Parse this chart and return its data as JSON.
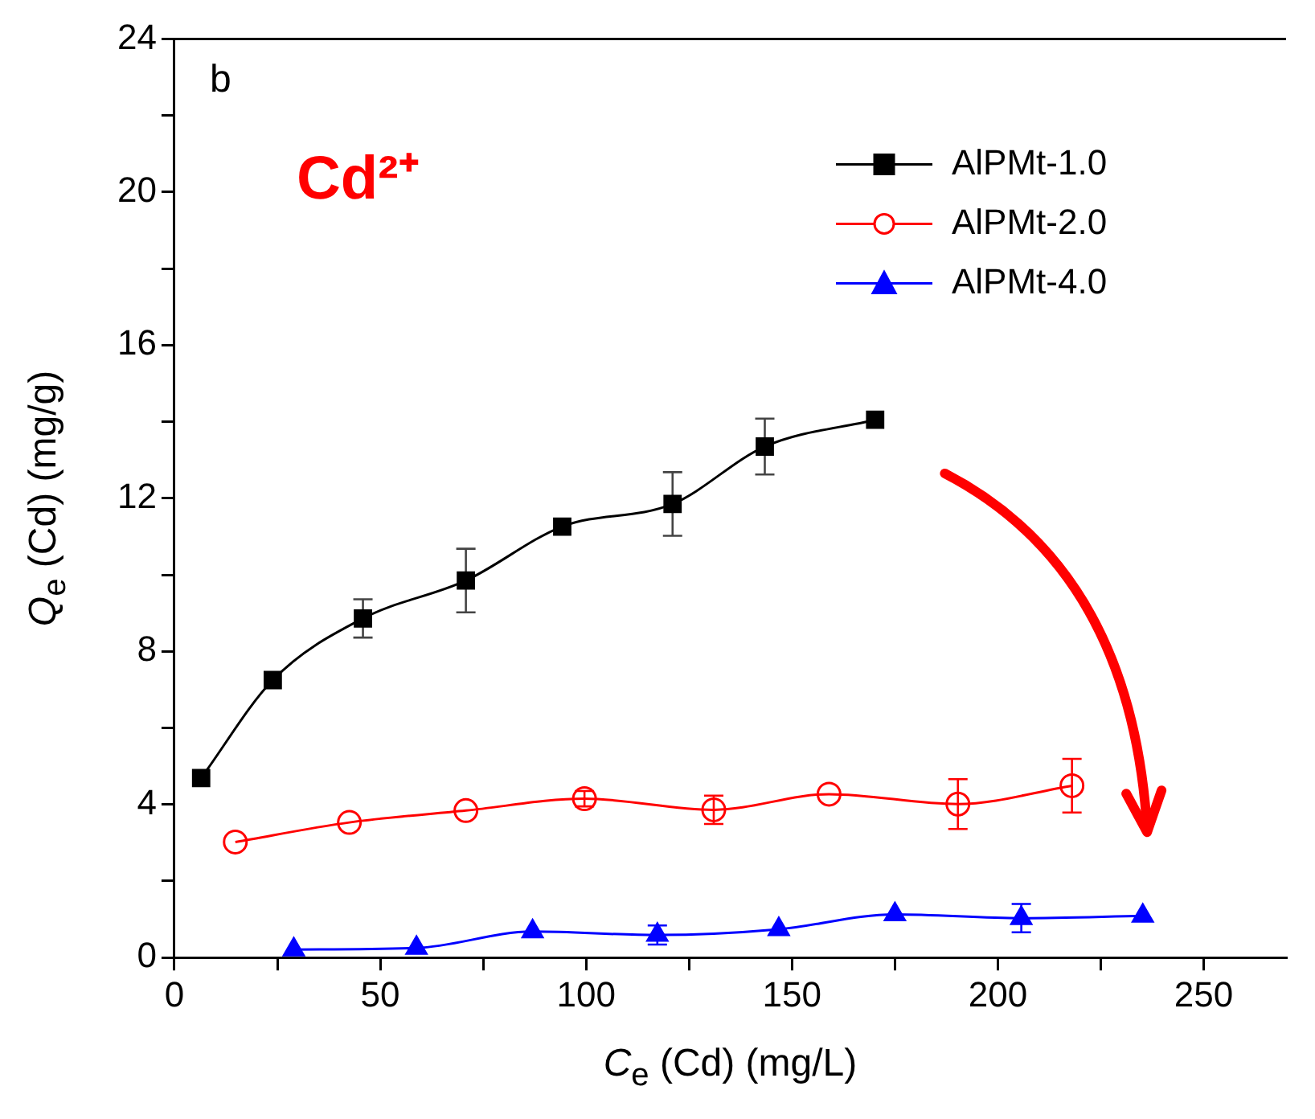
{
  "chart_data": {
    "type": "line",
    "xlabel": "C$_{e}$ (Cd) (mg/L)",
    "ylabel": "Q$_{e}$ (Cd) (mg/g)",
    "annotations": [
      "b",
      "Cd²⁺"
    ],
    "xlim": [
      0,
      270
    ],
    "xticks": [
      0,
      {
        "value": 25,
        "label": null
      },
      50,
      {
        "value": 75,
        "label": null
      },
      100,
      {
        "value": 125,
        "label": null
      },
      150,
      {
        "value": 175,
        "label": null
      },
      200,
      {
        "value": 225,
        "label": null
      },
      250
    ],
    "ylim": [
      0,
      24
    ],
    "yticks": [
      0,
      {
        "value": 2,
        "label": null
      },
      4,
      {
        "value": 6,
        "label": null
      },
      8,
      {
        "value": 10,
        "label": null
      },
      12,
      {
        "value": 14,
        "label": null
      },
      16,
      {
        "value": 18,
        "label": null
      },
      20,
      {
        "value": 22,
        "label": null
      },
      24
    ],
    "legend": "top right",
    "line_style": "solid",
    "series": [
      {
        "name": "AlPMt-1.0",
        "color": "#000000",
        "marker": "square",
        "x": [
          6.5,
          23.9,
          45.8,
          70.8,
          94.2,
          121,
          143.4,
          170.2
        ],
        "values": [
          4.69,
          7.25,
          8.86,
          9.85,
          11.26,
          11.85,
          13.35,
          14.05
        ],
        "errors": [
          null,
          null,
          0.5,
          0.83,
          null,
          0.83,
          0.73,
          null
        ]
      },
      {
        "name": "AlPMt-2.0",
        "color": "#ff0000",
        "marker": "circle",
        "x": [
          14.8,
          42.5,
          70.8,
          99.6,
          131,
          159,
          190.3,
          218
        ],
        "values": [
          3.02,
          3.53,
          3.84,
          4.15,
          3.86,
          4.27,
          4.01,
          4.49
        ],
        "errors": [
          null,
          null,
          null,
          0.2,
          0.37,
          null,
          0.65,
          0.7
        ]
      },
      {
        "name": "AlPMt-4.0",
        "color": "#0000ff",
        "marker": "triangle",
        "x": [
          29,
          58.8,
          87,
          117.3,
          146.8,
          175,
          205.7,
          235.2
        ],
        "values": [
          0.21,
          0.25,
          0.68,
          0.59,
          0.74,
          1.13,
          1.03,
          1.09
        ],
        "errors": [
          null,
          null,
          null,
          0.25,
          null,
          null,
          0.37,
          null
        ]
      }
    ]
  }
}
